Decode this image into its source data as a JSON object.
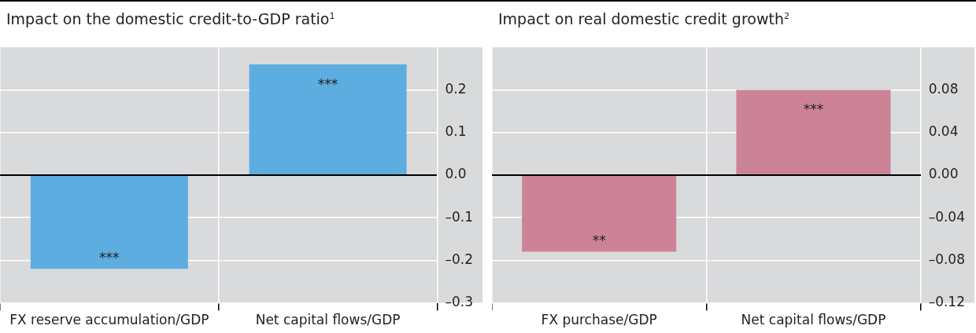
{
  "chart_data": [
    {
      "type": "bar",
      "title": "Impact on the domestic credit-to-GDP ratio$^{1}$",
      "categories": [
        "FX reserve accumulation/GDP",
        "Net capital flows/GDP"
      ],
      "values": [
        -0.22,
        0.26
      ],
      "color": "#5dade0",
      "ylim": [
        -0.3,
        0.3
      ],
      "yticks": [
        {
          "value": -0.3,
          "label": "–0.3"
        },
        {
          "value": -0.2,
          "label": "–0.2"
        },
        {
          "value": -0.1,
          "label": "–0.1"
        },
        {
          "value": 0,
          "label": "0.0"
        },
        {
          "value": 0.1,
          "label": "0.1"
        },
        {
          "value": 0.2,
          "label": "0.2"
        }
      ],
      "grid": true,
      "annotations": [
        {
          "text": "***",
          "x": "FX reserve accumulation/GDP",
          "y": -0.22
        },
        {
          "text": "***",
          "x": "Net capital flows/GDP",
          "y": 0.26
        }
      ]
    },
    {
      "type": "bar",
      "title": "Impact on real domestic credit growth$^{2}$",
      "categories": [
        "FX purchase/GDP",
        "Net capital flows/GDP"
      ],
      "values": [
        -0.072,
        0.08
      ],
      "color": "#cd8397",
      "ylim": [
        -0.12,
        0.12
      ],
      "yticks": [
        {
          "value": -0.12,
          "label": "–0.12"
        },
        {
          "value": -0.08,
          "label": "–0.08"
        },
        {
          "value": -0.04,
          "label": "–0.04"
        },
        {
          "value": 0,
          "label": "0.00"
        },
        {
          "value": 0.04,
          "label": "0.04"
        },
        {
          "value": 0.08,
          "label": "0.08"
        }
      ],
      "grid": true,
      "annotations": [
        {
          "text": "**",
          "x": "FX purchase/GDP",
          "y": -0.072
        },
        {
          "text": "***",
          "x": "Net capital flows/GDP",
          "y": 0.08
        }
      ]
    }
  ]
}
